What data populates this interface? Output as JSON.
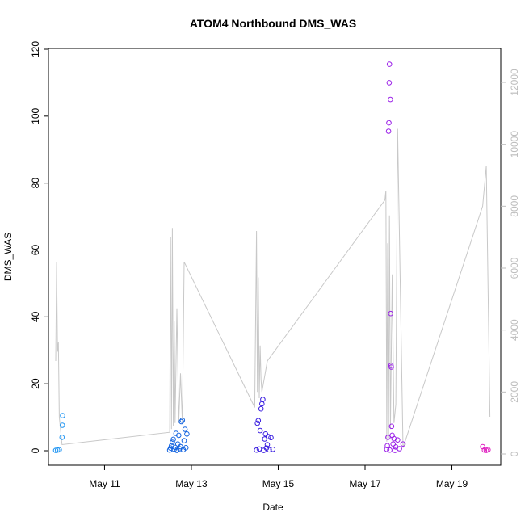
{
  "chart_data": {
    "type": "scatter",
    "title": "ATOM4 Northbound DMS_WAS",
    "xlabel": "Date",
    "ylabel": "DMS_WAS",
    "xlim": [
      "2024-05-09T17:00",
      "2024-05-20T03:00"
    ],
    "ylim": [
      0,
      120
    ],
    "y2lim": [
      0,
      12500
    ],
    "x_ticks": [
      {
        "label": "May 11",
        "value": "2024-05-11T00:00"
      },
      {
        "label": "May 13",
        "value": "2024-05-13T00:00"
      },
      {
        "label": "May 15",
        "value": "2024-05-15T00:00"
      },
      {
        "label": "May 17",
        "value": "2024-05-17T00:00"
      },
      {
        "label": "May 19",
        "value": "2024-05-19T00:00"
      }
    ],
    "y_ticks": [
      0,
      20,
      40,
      60,
      80,
      100,
      120
    ],
    "y2_ticks": [
      0,
      2000,
      4000,
      6000,
      8000,
      10000,
      12000
    ],
    "grid": false,
    "legend": "none",
    "series": [
      {
        "color": "#2196f3",
        "points": [
          [
            "2024-05-09T21:00",
            0.1
          ],
          [
            "2024-05-09T22:00",
            0.2
          ],
          [
            "2024-05-09T23:00",
            0.3
          ],
          [
            "2024-05-10T00:30",
            4.0
          ],
          [
            "2024-05-10T00:40",
            7.6
          ],
          [
            "2024-05-10T00:50",
            10.5
          ]
        ]
      },
      {
        "color": "#1565e0",
        "points": [
          [
            "2024-05-12T12:00",
            0.2
          ],
          [
            "2024-05-12T12:30",
            0.8
          ],
          [
            "2024-05-12T13:00",
            1.5
          ],
          [
            "2024-05-12T13:30",
            2.5
          ],
          [
            "2024-05-12T14:00",
            3.4
          ],
          [
            "2024-05-12T14:30",
            0.4
          ],
          [
            "2024-05-12T15:00",
            1.0
          ],
          [
            "2024-05-12T15:30",
            5.2
          ],
          [
            "2024-05-12T16:00",
            0.1
          ],
          [
            "2024-05-12T16:30",
            2.0
          ],
          [
            "2024-05-12T17:00",
            4.6
          ],
          [
            "2024-05-12T17:30",
            0.6
          ],
          [
            "2024-05-12T18:00",
            1.2
          ],
          [
            "2024-05-12T18:30",
            8.7
          ],
          [
            "2024-05-12T19:00",
            9.1
          ],
          [
            "2024-05-12T19:30",
            0.3
          ],
          [
            "2024-05-12T20:00",
            3.0
          ],
          [
            "2024-05-12T20:30",
            6.4
          ],
          [
            "2024-05-12T21:00",
            0.9
          ],
          [
            "2024-05-12T21:30",
            5.0
          ]
        ]
      },
      {
        "color": "#3a1ee0",
        "points": [
          [
            "2024-05-14T12:00",
            0.2
          ],
          [
            "2024-05-14T12:30",
            8.2
          ],
          [
            "2024-05-14T13:00",
            9.0
          ],
          [
            "2024-05-14T13:30",
            0.5
          ],
          [
            "2024-05-14T14:00",
            6.0
          ],
          [
            "2024-05-14T14:30",
            12.5
          ],
          [
            "2024-05-14T15:00",
            14.0
          ],
          [
            "2024-05-14T15:30",
            15.3
          ],
          [
            "2024-05-14T16:00",
            0.1
          ],
          [
            "2024-05-14T16:30",
            3.5
          ],
          [
            "2024-05-14T17:00",
            5.0
          ],
          [
            "2024-05-14T17:30",
            0.8
          ],
          [
            "2024-05-14T18:00",
            1.8
          ],
          [
            "2024-05-14T18:30",
            4.2
          ],
          [
            "2024-05-14T19:00",
            0.3
          ],
          [
            "2024-05-14T20:00",
            3.9
          ],
          [
            "2024-05-14T21:00",
            0.4
          ]
        ]
      },
      {
        "color": "#9a1ee8",
        "points": [
          [
            "2024-05-17T12:00",
            0.4
          ],
          [
            "2024-05-17T12:20",
            1.5
          ],
          [
            "2024-05-17T12:40",
            4.0
          ],
          [
            "2024-05-17T13:00",
            95.5
          ],
          [
            "2024-05-17T13:10",
            98.0
          ],
          [
            "2024-05-17T13:20",
            110.0
          ],
          [
            "2024-05-17T13:30",
            115.5
          ],
          [
            "2024-05-17T13:40",
            0.2
          ],
          [
            "2024-05-17T14:00",
            105.0
          ],
          [
            "2024-05-17T14:10",
            41.0
          ],
          [
            "2024-05-17T14:20",
            25.5
          ],
          [
            "2024-05-17T14:30",
            25.0
          ],
          [
            "2024-05-17T14:40",
            7.3
          ],
          [
            "2024-05-17T15:00",
            4.6
          ],
          [
            "2024-05-17T15:30",
            2.0
          ],
          [
            "2024-05-17T16:00",
            3.6
          ],
          [
            "2024-05-17T16:30",
            0.1
          ],
          [
            "2024-05-17T17:00",
            1.1
          ],
          [
            "2024-05-17T18:00",
            3.2
          ],
          [
            "2024-05-17T19:00",
            0.6
          ],
          [
            "2024-05-17T21:00",
            2.0
          ]
        ]
      },
      {
        "color": "#e020c0",
        "points": [
          [
            "2024-05-19T17:00",
            1.2
          ],
          [
            "2024-05-19T18:00",
            0.2
          ],
          [
            "2024-05-19T19:00",
            0.1
          ],
          [
            "2024-05-19T20:00",
            0.3
          ]
        ]
      }
    ],
    "secondary_line": {
      "color": "#c8c8c8",
      "points": [
        [
          "2024-05-09T21:00",
          3000
        ],
        [
          "2024-05-09T21:30",
          6200
        ],
        [
          "2024-05-09T22:00",
          3300
        ],
        [
          "2024-05-09T22:30",
          3600
        ],
        [
          "2024-05-09T23:00",
          1200
        ],
        [
          "2024-05-10T00:30",
          300
        ],
        [
          "2024-05-12T12:00",
          700
        ],
        [
          "2024-05-12T12:30",
          7000
        ],
        [
          "2024-05-12T13:00",
          800
        ],
        [
          "2024-05-12T13:30",
          7300
        ],
        [
          "2024-05-12T14:00",
          900
        ],
        [
          "2024-05-12T14:30",
          4300
        ],
        [
          "2024-05-12T15:00",
          1000
        ],
        [
          "2024-05-12T16:00",
          4700
        ],
        [
          "2024-05-12T17:00",
          1000
        ],
        [
          "2024-05-12T18:00",
          2600
        ],
        [
          "2024-05-12T19:00",
          1000
        ],
        [
          "2024-05-12T20:00",
          6200
        ],
        [
          "2024-05-14T11:00",
          1500
        ],
        [
          "2024-05-14T12:00",
          7200
        ],
        [
          "2024-05-14T12:30",
          2000
        ],
        [
          "2024-05-14T13:00",
          5700
        ],
        [
          "2024-05-14T13:30",
          1800
        ],
        [
          "2024-05-14T14:00",
          3500
        ],
        [
          "2024-05-14T14:30",
          2400
        ],
        [
          "2024-05-14T15:00",
          2000
        ],
        [
          "2024-05-14T18:00",
          3000
        ],
        [
          "2024-05-17T11:00",
          8200
        ],
        [
          "2024-05-17T11:30",
          8500
        ],
        [
          "2024-05-17T12:00",
          400
        ],
        [
          "2024-05-17T12:30",
          6800
        ],
        [
          "2024-05-17T13:00",
          500
        ],
        [
          "2024-05-17T13:30",
          7700
        ],
        [
          "2024-05-17T14:00",
          800
        ],
        [
          "2024-05-17T15:00",
          5800
        ],
        [
          "2024-05-17T16:00",
          1000
        ],
        [
          "2024-05-17T17:00",
          1600
        ],
        [
          "2024-05-17T18:00",
          10500
        ],
        [
          "2024-05-17T21:00",
          200
        ],
        [
          "2024-05-19T17:00",
          8000
        ],
        [
          "2024-05-19T19:00",
          9300
        ],
        [
          "2024-05-19T21:00",
          1200
        ]
      ]
    }
  }
}
